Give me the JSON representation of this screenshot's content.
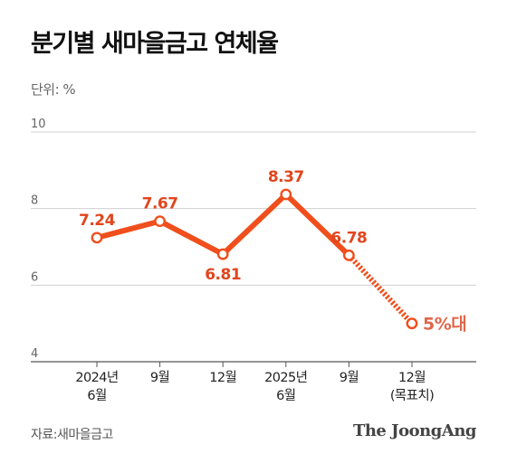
{
  "header": {
    "title": "분기별 새마을금고 연체율",
    "unit": "단위: %"
  },
  "footer": {
    "source": "자료:새마을금고",
    "brand": "The JoongAng"
  },
  "colors": {
    "line": "#f04e1c",
    "label": "#e2451c",
    "target_label": "#e0664a",
    "marker_fill": "#ffffff",
    "grid": "#d0d0d0",
    "axis": "#555555"
  },
  "chart_data": {
    "type": "line",
    "title": "분기별 새마을금고 연체율",
    "ylabel": "단위: %",
    "ylim": [
      4,
      10
    ],
    "yticks": [
      10,
      8,
      6,
      4
    ],
    "grid": true,
    "x": [
      "2024년 6월",
      "9월",
      "12월",
      "2025년 6월",
      "9월",
      "12월 (목표치)"
    ],
    "x_tick_lines": [
      [
        "2024년",
        "6월"
      ],
      [
        "9월"
      ],
      [
        "12월"
      ],
      [
        "2025년",
        "6월"
      ],
      [
        "9월"
      ],
      [
        "12월",
        "(목표치)"
      ]
    ],
    "series": [
      {
        "values": [
          7.24,
          7.67,
          6.81,
          8.37,
          6.78,
          5.0
        ],
        "labels": [
          "7.24",
          "7.67",
          "6.81",
          "8.37",
          "6.78",
          "5%대"
        ],
        "label_position": [
          "above",
          "above",
          "below",
          "above",
          "above",
          "right"
        ],
        "projected_from_index": 4
      }
    ]
  }
}
